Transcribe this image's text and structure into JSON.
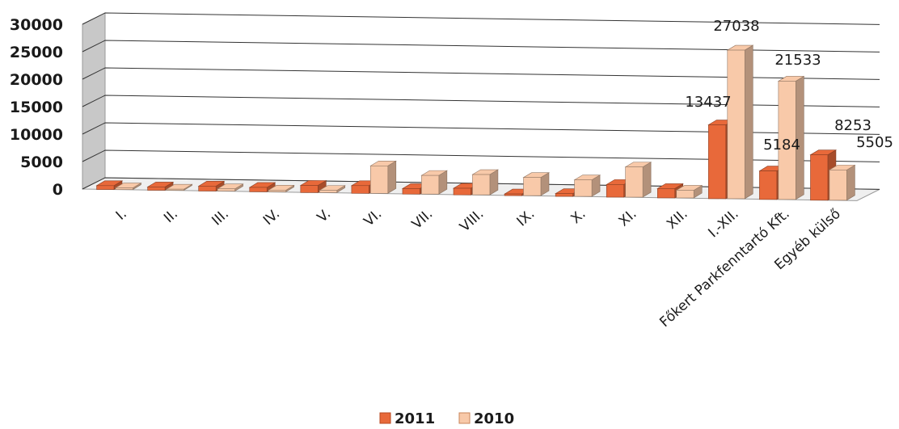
{
  "chart_data": {
    "type": "bar",
    "categories": [
      "I.",
      "II.",
      "III.",
      "IV.",
      "V.",
      "VI.",
      "VII.",
      "VIII.",
      "IX.",
      "X.",
      "XI.",
      "XII.",
      "I.-XII.",
      "Főkert Parkfenntartó Kft.",
      "Egyéb külső"
    ],
    "series": [
      {
        "name": "2011",
        "values": [
          700,
          600,
          900,
          800,
          1300,
          1400,
          1000,
          1200,
          300,
          500,
          2300,
          1700,
          13437,
          5184,
          8253
        ]
      },
      {
        "name": "2010",
        "values": [
          300,
          200,
          400,
          300,
          400,
          5000,
          3400,
          3700,
          3300,
          3000,
          5500,
          1400,
          27038,
          21533,
          5505
        ]
      }
    ],
    "data_labels": [
      {
        "series": "2011",
        "category": "I.-XII.",
        "text": "13437"
      },
      {
        "series": "2010",
        "category": "I.-XII.",
        "text": "27038"
      },
      {
        "series": "2011",
        "category": "Főkert Parkfenntartó Kft.",
        "text": "5184"
      },
      {
        "series": "2010",
        "category": "Főkert Parkfenntartó Kft.",
        "text": "21533"
      },
      {
        "series": "2011",
        "category": "Egyéb külső",
        "text": "8253"
      },
      {
        "series": "2010",
        "category": "Egyéb külső",
        "text": "5505"
      }
    ],
    "yticks": [
      "0",
      "5000",
      "10000",
      "15000",
      "20000",
      "25000",
      "30000"
    ],
    "ylim": [
      0,
      30000
    ],
    "grid": true,
    "legend_position": "bottom",
    "colors": {
      "2011": "#e8693a",
      "2010": "#f8c9a9"
    },
    "title": "",
    "xlabel": "",
    "ylabel": ""
  }
}
